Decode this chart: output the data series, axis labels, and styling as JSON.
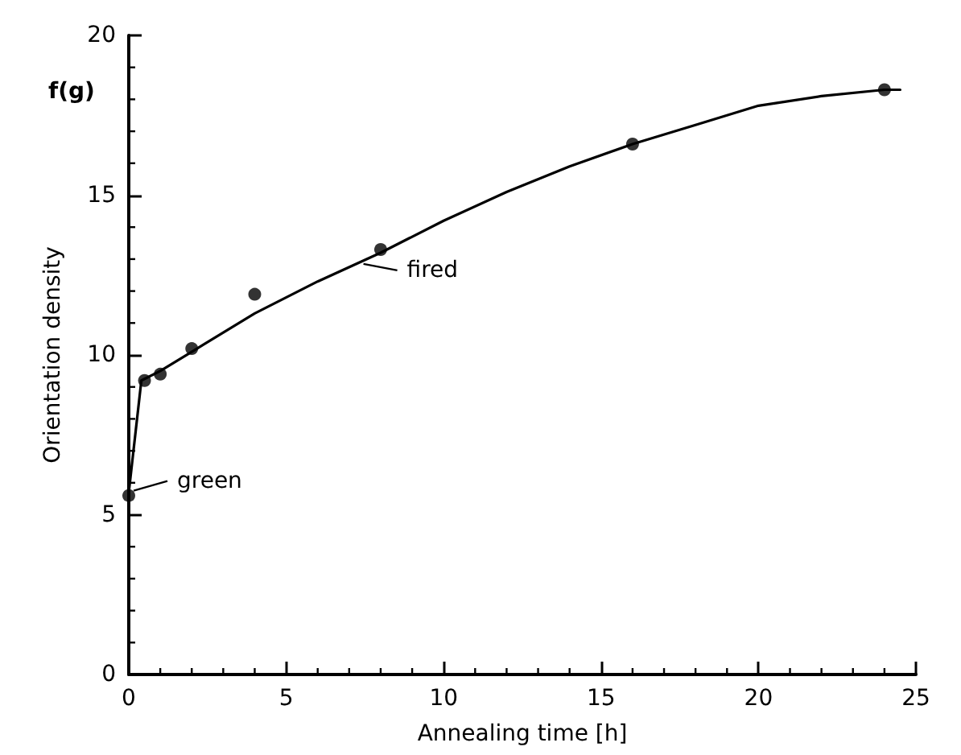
{
  "chart_data": {
    "type": "scatter",
    "xlabel": "Annealing time [h]",
    "ylabel": "Orientation density",
    "xlim": [
      0,
      25
    ],
    "xticks": [
      0,
      5,
      10,
      15,
      20,
      25
    ],
    "ylim": [
      0,
      20
    ],
    "yticks": [
      0,
      5,
      10,
      15,
      20
    ],
    "grid": false,
    "marker": "circle",
    "annotations": [
      "f(g)",
      {
        "text": "green",
        "x": 0,
        "y": 5.7
      },
      {
        "text": "fired",
        "x": 7.3,
        "y": 12.8
      }
    ],
    "series": [
      {
        "color": "#000000",
        "x": [
          0,
          0.5,
          1,
          2,
          4,
          8,
          16,
          24
        ],
        "values": [
          5.6,
          9.2,
          9.4,
          10.2,
          11.9,
          13.3,
          16.6,
          18.3
        ]
      },
      {
        "type": "line",
        "color": "#000000",
        "marker": "none",
        "line_style": "solid",
        "x": [
          0,
          0.4,
          1,
          2,
          4,
          6,
          8,
          10,
          12,
          14,
          16,
          18,
          20,
          22,
          24,
          24.5
        ],
        "values": [
          5.7,
          9.2,
          9.5,
          10.1,
          11.3,
          12.3,
          13.2,
          14.2,
          15.1,
          15.9,
          16.6,
          17.2,
          17.8,
          18.1,
          18.3,
          18.3
        ]
      }
    ]
  }
}
